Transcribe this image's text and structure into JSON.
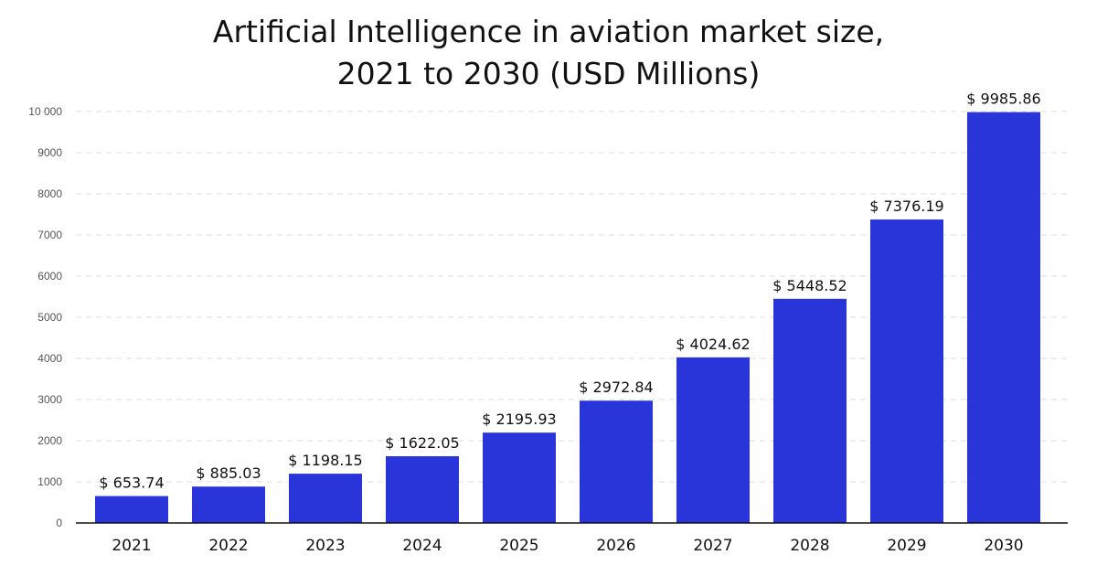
{
  "chart_data": {
    "type": "bar",
    "title_lines": [
      "Artificial Intelligence in aviation market size,",
      "2021 to 2030 (USD Millions)"
    ],
    "xlabel": "",
    "ylabel": "",
    "categories": [
      "2021",
      "2022",
      "2023",
      "2024",
      "2025",
      "2026",
      "2027",
      "2028",
      "2029",
      "2030"
    ],
    "values": [
      653.74,
      885.03,
      1198.15,
      1622.05,
      2195.93,
      2972.84,
      4024.62,
      5448.52,
      7376.19,
      9985.86
    ],
    "data_labels": [
      "$ 653.74",
      "$ 885.03",
      "$ 1198.15",
      "$ 1622.05",
      "$ 2195.93",
      "$ 2972.84",
      "$ 4024.62",
      "$ 5448.52",
      "$ 7376.19",
      "$ 9985.86"
    ],
    "ylim": [
      0,
      10000
    ],
    "yticks": [
      0,
      1000,
      2000,
      3000,
      4000,
      5000,
      6000,
      7000,
      8000,
      9000,
      10000
    ],
    "ytick_labels": [
      "0",
      "1000",
      "2000",
      "3000",
      "4000",
      "5000",
      "6000",
      "7000",
      "8000",
      "9000",
      "10 000"
    ],
    "grid": true,
    "bar_color": "#2935D9"
  }
}
